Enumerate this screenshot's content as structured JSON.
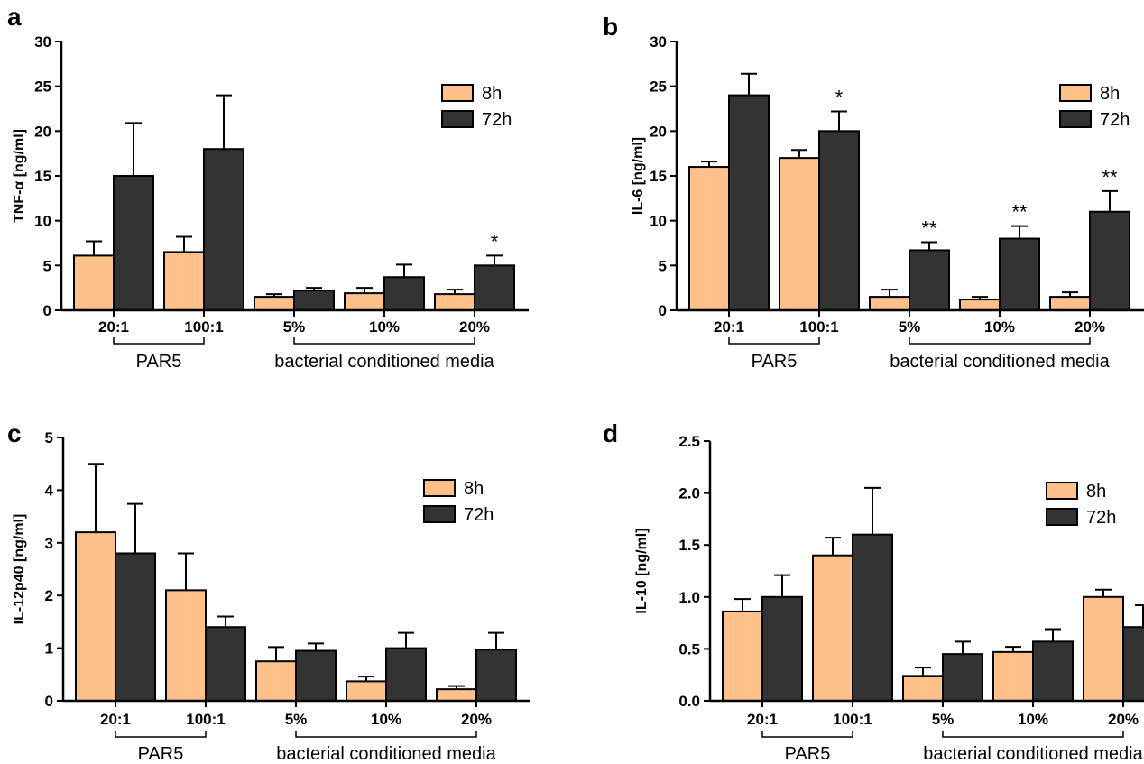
{
  "colors": {
    "8h": "#ffc08a",
    "72h": "#333333",
    "axis": "#000000"
  },
  "legend_entries": [
    "8h",
    "72h"
  ],
  "groups": {
    "left": "PAR5",
    "right": "bacterial conditioned media"
  },
  "chart_data": [
    {
      "panel": "a",
      "type": "bar",
      "ylabel": "TNF-α [ng/ml]",
      "ylim": [
        0,
        30
      ],
      "yticks": [
        "0",
        "5",
        "10",
        "15",
        "20",
        "25",
        "30"
      ],
      "categories": [
        "20:1",
        "100:1",
        "5%",
        "10%",
        "20%"
      ],
      "series": [
        {
          "name": "8h",
          "values": [
            6.1,
            6.5,
            1.5,
            1.9,
            1.8
          ],
          "errors": [
            1.6,
            1.7,
            0.3,
            0.6,
            0.5
          ]
        },
        {
          "name": "72h",
          "values": [
            15.0,
            18.0,
            2.2,
            3.7,
            5.0
          ],
          "errors": [
            5.9,
            6.0,
            0.3,
            1.4,
            1.1
          ]
        }
      ],
      "annotations": [
        {
          "category": "20%",
          "series": "72h",
          "text": "*"
        }
      ],
      "legend": "top-right"
    },
    {
      "panel": "b",
      "type": "bar",
      "ylabel": "IL-6 [ng/ml]",
      "ylim": [
        0,
        30
      ],
      "yticks": [
        "0",
        "5",
        "10",
        "15",
        "20",
        "25",
        "30"
      ],
      "categories": [
        "20:1",
        "100:1",
        "5%",
        "10%",
        "20%"
      ],
      "series": [
        {
          "name": "8h",
          "values": [
            16.0,
            17.0,
            1.5,
            1.2,
            1.5
          ],
          "errors": [
            0.6,
            0.9,
            0.8,
            0.3,
            0.5
          ]
        },
        {
          "name": "72h",
          "values": [
            24.0,
            20.0,
            6.7,
            8.0,
            11.0
          ],
          "errors": [
            2.4,
            2.2,
            0.9,
            1.4,
            2.3
          ]
        }
      ],
      "annotations": [
        {
          "category": "100:1",
          "series": "72h",
          "text": "*"
        },
        {
          "category": "5%",
          "series": "72h",
          "text": "**"
        },
        {
          "category": "10%",
          "series": "72h",
          "text": "**"
        },
        {
          "category": "20%",
          "series": "72h",
          "text": "**"
        }
      ],
      "legend": "top-right"
    },
    {
      "panel": "c",
      "type": "bar",
      "ylabel": "IL-12p40 [ng/ml]",
      "ylim": [
        0,
        5
      ],
      "yticks": [
        "0",
        "1",
        "2",
        "3",
        "4",
        "5"
      ],
      "categories": [
        "20:1",
        "100:1",
        "5%",
        "10%",
        "20%"
      ],
      "series": [
        {
          "name": "8h",
          "values": [
            3.2,
            2.1,
            0.75,
            0.37,
            0.22
          ],
          "errors": [
            1.3,
            0.7,
            0.27,
            0.09,
            0.06
          ]
        },
        {
          "name": "72h",
          "values": [
            2.8,
            1.4,
            0.95,
            1.0,
            0.97
          ],
          "errors": [
            0.94,
            0.2,
            0.14,
            0.29,
            0.32
          ]
        }
      ],
      "annotations": [],
      "legend": "top-right"
    },
    {
      "panel": "d",
      "type": "bar",
      "ylabel": "IL-10 [ng/ml]",
      "ylim": [
        0,
        2.5
      ],
      "yticks": [
        "0.0",
        "0.5",
        "1.0",
        "1.5",
        "2.0",
        "2.5"
      ],
      "categories": [
        "20:1",
        "100:1",
        "5%",
        "10%",
        "20%"
      ],
      "series": [
        {
          "name": "8h",
          "values": [
            0.86,
            1.4,
            0.24,
            0.47,
            1.0
          ],
          "errors": [
            0.12,
            0.17,
            0.08,
            0.05,
            0.07
          ]
        },
        {
          "name": "72h",
          "values": [
            1.0,
            1.6,
            0.45,
            0.57,
            0.71
          ],
          "errors": [
            0.21,
            0.45,
            0.12,
            0.12,
            0.21
          ]
        }
      ],
      "annotations": [],
      "legend": "top-right"
    }
  ]
}
